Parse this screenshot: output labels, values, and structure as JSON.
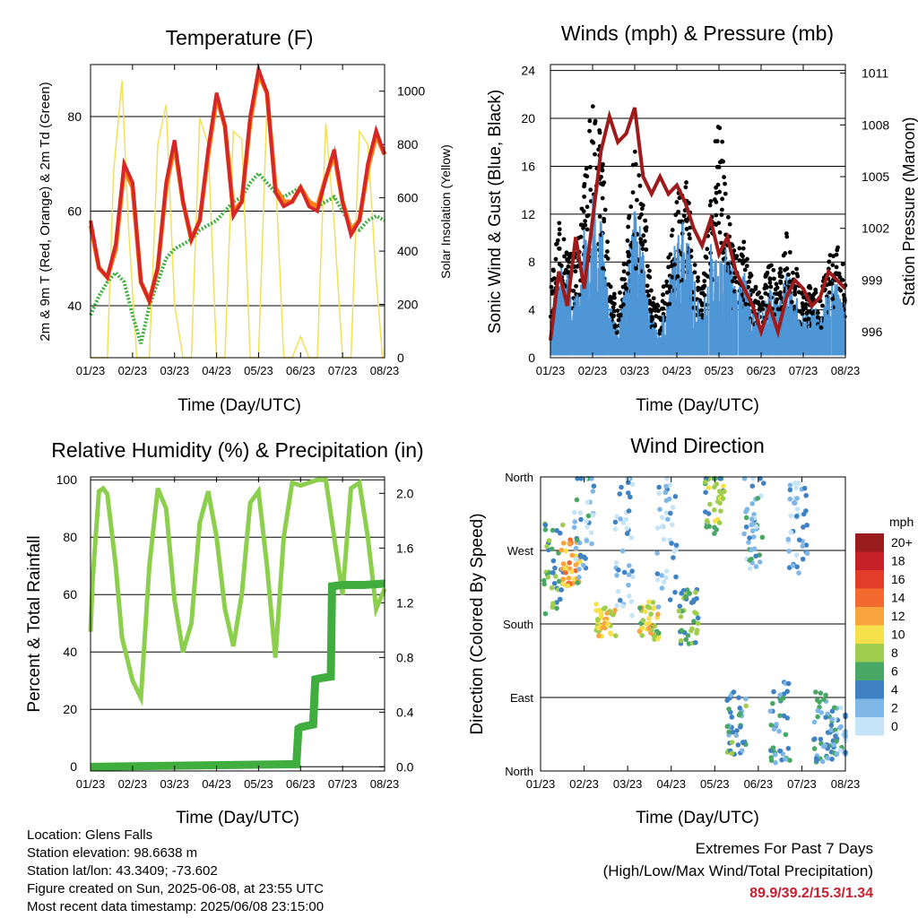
{
  "chart_data": [
    {
      "id": "temperature",
      "type": "line",
      "title": "Temperature (F)",
      "xlabel": "Time (Day/UTC)",
      "ylabel": "2m & 9m T (Red, Orange) & 2m Td (Green)",
      "ylabel_right": "Solar Insolation (Yellow)",
      "x_ticks": [
        "01/23",
        "02/23",
        "03/23",
        "04/23",
        "05/23",
        "06/23",
        "07/23",
        "08/23"
      ],
      "ylim": [
        29,
        91
      ],
      "y_ticks": [
        40,
        60,
        80
      ],
      "ylim_right": [
        0,
        1100
      ],
      "y_ticks_right": [
        0,
        200,
        400,
        600,
        800,
        1000
      ],
      "grid": "horizontal",
      "colors": {
        "t2m": "#d62728",
        "t9m": "#ff7f0e",
        "td": "#3cae3c",
        "solar": "#f2e05a"
      },
      "series": [
        {
          "name": "2m T",
          "x": [
            0,
            0.2,
            0.4,
            0.6,
            0.8,
            1.0,
            1.2,
            1.4,
            1.6,
            1.8,
            2.0,
            2.2,
            2.4,
            2.6,
            2.8,
            3.0,
            3.2,
            3.4,
            3.6,
            3.8,
            4.0,
            4.2,
            4.4,
            4.6,
            4.8,
            5.0,
            5.2,
            5.4,
            5.6,
            5.8,
            6.0,
            6.2,
            6.4,
            6.6,
            6.8,
            7.0
          ],
          "values": [
            58,
            48,
            46,
            53,
            70,
            66,
            45,
            41,
            48,
            66,
            75,
            62,
            54,
            58,
            73,
            85,
            78,
            59,
            62,
            80,
            90,
            85,
            64,
            61,
            62,
            65,
            61,
            60,
            67,
            73,
            62,
            55,
            58,
            70,
            77,
            72
          ]
        },
        {
          "name": "9m T",
          "x": [
            0,
            0.2,
            0.4,
            0.6,
            0.8,
            1.0,
            1.2,
            1.4,
            1.6,
            1.8,
            2.0,
            2.2,
            2.4,
            2.6,
            2.8,
            3.0,
            3.2,
            3.4,
            3.6,
            3.8,
            4.0,
            4.2,
            4.4,
            4.6,
            4.8,
            5.0,
            5.2,
            5.4,
            5.6,
            5.8,
            6.0,
            6.2,
            6.4,
            6.6,
            6.8,
            7.0
          ],
          "values": [
            57,
            48,
            46,
            52,
            69,
            65,
            45,
            41,
            48,
            65,
            74,
            62,
            54,
            58,
            72,
            84,
            78,
            60,
            62,
            79,
            89,
            85,
            65,
            62,
            62,
            65,
            62,
            61,
            67,
            72,
            62,
            56,
            58,
            69,
            76,
            72
          ]
        },
        {
          "name": "2m Td",
          "x": [
            0,
            0.2,
            0.4,
            0.6,
            0.8,
            1.0,
            1.2,
            1.4,
            1.6,
            1.8,
            2.0,
            2.2,
            2.4,
            2.6,
            2.8,
            3.0,
            3.2,
            3.4,
            3.6,
            3.8,
            4.0,
            4.2,
            4.4,
            4.6,
            4.8,
            5.0,
            5.2,
            5.4,
            5.6,
            5.8,
            6.0,
            6.2,
            6.4,
            6.6,
            6.8,
            7.0
          ],
          "values": [
            38,
            42,
            45,
            47,
            45,
            38,
            32,
            40,
            45,
            50,
            52,
            53,
            54,
            56,
            57,
            58,
            60,
            62,
            63,
            66,
            68,
            66,
            64,
            63,
            64,
            65,
            62,
            61,
            62,
            63,
            60,
            57,
            56,
            58,
            59,
            58
          ]
        },
        {
          "name": "Solar Insolation",
          "axis": "right",
          "x": [
            0,
            0.4,
            0.55,
            0.75,
            0.9,
            1.1,
            1.4,
            1.6,
            1.8,
            2.0,
            2.2,
            2.4,
            2.6,
            2.8,
            3.0,
            3.2,
            3.4,
            3.6,
            3.8,
            4.0,
            4.2,
            4.4,
            4.6,
            4.8,
            5.0,
            5.2,
            5.4,
            5.6,
            5.8,
            6.0,
            6.2,
            6.4,
            6.6,
            6.8,
            6.95,
            7.0
          ],
          "values": [
            0,
            0,
            700,
            1040,
            500,
            0,
            0,
            800,
            950,
            200,
            0,
            0,
            900,
            800,
            0,
            0,
            850,
            820,
            0,
            0,
            950,
            700,
            0,
            0,
            80,
            0,
            0,
            880,
            500,
            0,
            0,
            850,
            800,
            300,
            0,
            0
          ]
        }
      ]
    },
    {
      "id": "winds",
      "type": "scatter",
      "title": "Winds (mph) & Pressure (mb)",
      "xlabel": "Time (Day/UTC)",
      "ylabel": "Sonic Wind & Gust (Blue, Black)",
      "ylabel_right": "Station Pressure (Maroon)",
      "x_ticks": [
        "01/23",
        "02/23",
        "03/23",
        "04/23",
        "05/23",
        "06/23",
        "07/23",
        "08/23"
      ],
      "ylim": [
        0,
        24.5
      ],
      "y_ticks": [
        0,
        4,
        8,
        12,
        16,
        20,
        24
      ],
      "ylim_right": [
        994.5,
        1011.5
      ],
      "y_ticks_right": [
        996,
        999,
        1002,
        1005,
        1008,
        1011
      ],
      "grid": "horizontal",
      "colors": {
        "wind": "#4f96d6",
        "gust": "#000000",
        "pressure": "#9e1b1b"
      },
      "series": [
        {
          "name": "Sonic Wind",
          "x": [
            0,
            0.2,
            0.4,
            0.6,
            0.8,
            1.0,
            1.2,
            1.4,
            1.6,
            1.8,
            2.0,
            2.2,
            2.4,
            2.6,
            2.8,
            3.0,
            3.2,
            3.4,
            3.6,
            3.8,
            4.0,
            4.2,
            4.4,
            4.6,
            4.8,
            5.0,
            5.2,
            5.4,
            5.6,
            5.8,
            6.0,
            6.2,
            6.4,
            6.6,
            6.8,
            7.0
          ],
          "values": [
            3,
            7,
            6,
            5,
            9,
            12,
            10,
            4,
            2,
            6,
            11,
            8,
            3,
            2,
            5,
            9,
            10,
            6,
            3,
            8,
            7,
            8,
            5,
            6,
            4,
            3,
            5,
            4,
            6,
            5,
            3,
            4,
            3,
            5,
            6,
            4
          ]
        },
        {
          "name": "Gust",
          "x": [
            0,
            0.2,
            0.4,
            0.6,
            0.8,
            1.0,
            1.2,
            1.4,
            1.6,
            1.8,
            2.0,
            2.2,
            2.4,
            2.6,
            2.8,
            3.0,
            3.2,
            3.4,
            3.6,
            3.8,
            4.0,
            4.2,
            4.4,
            4.6,
            4.8,
            5.0,
            5.2,
            5.4,
            5.6,
            5.8,
            6.0,
            6.2,
            6.4,
            6.6,
            6.8,
            7.0
          ],
          "values": [
            6,
            11,
            9,
            8,
            14,
            22,
            18,
            7,
            4,
            9,
            17,
            14,
            5,
            4,
            8,
            13,
            15,
            9,
            5,
            13,
            21,
            12,
            8,
            10,
            6,
            5,
            8,
            6,
            10,
            8,
            5,
            6,
            5,
            8,
            9,
            7
          ]
        },
        {
          "name": "Station Pressure",
          "axis": "right",
          "x": [
            0,
            0.2,
            0.4,
            0.6,
            0.8,
            1.0,
            1.2,
            1.4,
            1.6,
            1.8,
            2.0,
            2.2,
            2.4,
            2.6,
            2.8,
            3.0,
            3.2,
            3.4,
            3.6,
            3.8,
            4.0,
            4.2,
            4.4,
            4.6,
            4.8,
            5.0,
            5.2,
            5.4,
            5.6,
            5.8,
            6.0,
            6.2,
            6.4,
            6.6,
            6.8,
            7.0
          ],
          "values": [
            995.5,
            999.5,
            997.5,
            1001.5,
            998.5,
            1002.5,
            1006.5,
            1008.5,
            1007.0,
            1007.5,
            1009.0,
            1005.0,
            1004.0,
            1005.0,
            1004.0,
            1004.5,
            1003.5,
            1002.0,
            1001.0,
            1002.5,
            1000.5,
            1001.5,
            999.5,
            998.5,
            997.5,
            996.0,
            997.5,
            996.0,
            998.0,
            999.0,
            998.5,
            997.5,
            998.0,
            999.5,
            999.0,
            998.5
          ]
        }
      ]
    },
    {
      "id": "humidity",
      "type": "line",
      "title": "Relative Humidity (%) & Precipitation (in)",
      "xlabel": "Time (Day/UTC)",
      "ylabel": "Percent & Total Rainfall",
      "x_ticks": [
        "01/23",
        "02/23",
        "03/23",
        "04/23",
        "05/23",
        "06/23",
        "07/23",
        "08/23"
      ],
      "ylim": [
        -1.5,
        101
      ],
      "y_ticks": [
        0,
        20,
        40,
        60,
        80,
        100
      ],
      "ylim_right": [
        -0.03,
        2.12
      ],
      "y_ticks_right": [
        "0.0",
        "0.4",
        "0.8",
        "1.2",
        "1.6",
        "2.0"
      ],
      "grid": "horizontal",
      "colors": {
        "rh": "#8ccf4d",
        "precip": "#3fae3f"
      },
      "series": [
        {
          "name": "Relative Humidity",
          "x": [
            0,
            0.05,
            0.2,
            0.3,
            0.4,
            0.6,
            0.75,
            1.0,
            1.2,
            1.4,
            1.6,
            1.8,
            2.0,
            2.2,
            2.4,
            2.6,
            2.8,
            3.0,
            3.2,
            3.4,
            3.6,
            3.8,
            4.0,
            4.2,
            4.4,
            4.6,
            4.8,
            5.0,
            5.2,
            5.4,
            5.6,
            5.8,
            6.0,
            6.2,
            6.4,
            6.6,
            6.8,
            7.0
          ],
          "values": [
            47,
            65,
            96,
            97,
            95,
            70,
            45,
            30,
            24,
            70,
            97,
            90,
            58,
            40,
            50,
            85,
            96,
            80,
            55,
            42,
            60,
            92,
            96,
            70,
            38,
            80,
            99,
            98,
            99,
            100,
            100,
            80,
            60,
            97,
            99,
            80,
            55,
            62
          ]
        },
        {
          "name": "Total Precipitation",
          "axis": "right",
          "x": [
            0,
            4.9,
            4.95,
            5.0,
            5.3,
            5.35,
            5.5,
            5.72,
            5.75,
            6.0,
            6.5,
            7.0
          ],
          "values": [
            0,
            0.02,
            0.28,
            0.29,
            0.31,
            0.64,
            0.65,
            0.66,
            1.32,
            1.33,
            1.33,
            1.34
          ]
        }
      ]
    },
    {
      "id": "direction",
      "type": "scatter",
      "title": "Wind Direction",
      "xlabel": "Time (Day/UTC)",
      "ylabel": "Direction (Colored By Speed)",
      "x_ticks": [
        "01/23",
        "02/23",
        "03/23",
        "04/23",
        "05/23",
        "06/23",
        "07/23",
        "08/23"
      ],
      "y_ticks": [
        "North",
        "East",
        "South",
        "West",
        "North"
      ],
      "ylim": [
        0,
        360
      ],
      "grid": "horizontal",
      "legend": {
        "title": "mph",
        "placement": "right",
        "labels": [
          "20+",
          "18",
          "16",
          "14",
          "12",
          "10",
          "8",
          "6",
          "4",
          "2",
          "0"
        ],
        "colors": [
          "#9b1c1c",
          "#c62127",
          "#e23d2a",
          "#f26a2e",
          "#f9a43e",
          "#f6e04b",
          "#9fcd4e",
          "#4aa866",
          "#3f82c4",
          "#7fb8e6",
          "#c6e4f7"
        ]
      },
      "series": [
        {
          "name": "clusters",
          "points": [
            {
              "x": 0.3,
              "dir": 250,
              "spread": 60,
              "speed": 6
            },
            {
              "x": 0.7,
              "dir": 255,
              "spread": 30,
              "speed": 12
            },
            {
              "x": 1.0,
              "dir": 300,
              "spread": 70,
              "speed": 3
            },
            {
              "x": 1.5,
              "dir": 185,
              "spread": 20,
              "speed": 10
            },
            {
              "x": 1.9,
              "dir": 280,
              "spread": 90,
              "speed": 2
            },
            {
              "x": 2.5,
              "dir": 185,
              "spread": 25,
              "speed": 9
            },
            {
              "x": 2.9,
              "dir": 280,
              "spread": 80,
              "speed": 2
            },
            {
              "x": 3.4,
              "dir": 190,
              "spread": 35,
              "speed": 6
            },
            {
              "x": 4.0,
              "dir": 330,
              "spread": 40,
              "speed": 7
            },
            {
              "x": 4.5,
              "dir": 60,
              "spread": 40,
              "speed": 5
            },
            {
              "x": 4.9,
              "dir": 300,
              "spread": 60,
              "speed": 3
            },
            {
              "x": 5.5,
              "dir": 60,
              "spread": 50,
              "speed": 4
            },
            {
              "x": 5.9,
              "dir": 300,
              "spread": 60,
              "speed": 2
            },
            {
              "x": 6.5,
              "dir": 55,
              "spread": 45,
              "speed": 4
            },
            {
              "x": 6.9,
              "dir": 50,
              "spread": 30,
              "speed": 3
            }
          ]
        }
      ]
    }
  ],
  "info": {
    "location": "Location: Glens Falls",
    "elevation": "Station elevation: 98.6638 m",
    "latlon": "Station lat/lon: 43.3409; -73.602",
    "created": "Figure created on Sun, 2025-06-08, at 23:55 UTC",
    "latest": "Most recent data timestamp: 2025/06/08 23:15:00"
  },
  "extremes": {
    "title": "Extremes For Past 7 Days",
    "subtitle": "(High/Low/Max Wind/Total Precipitation)",
    "values": "89.9/39.2/15.3/1.34"
  }
}
